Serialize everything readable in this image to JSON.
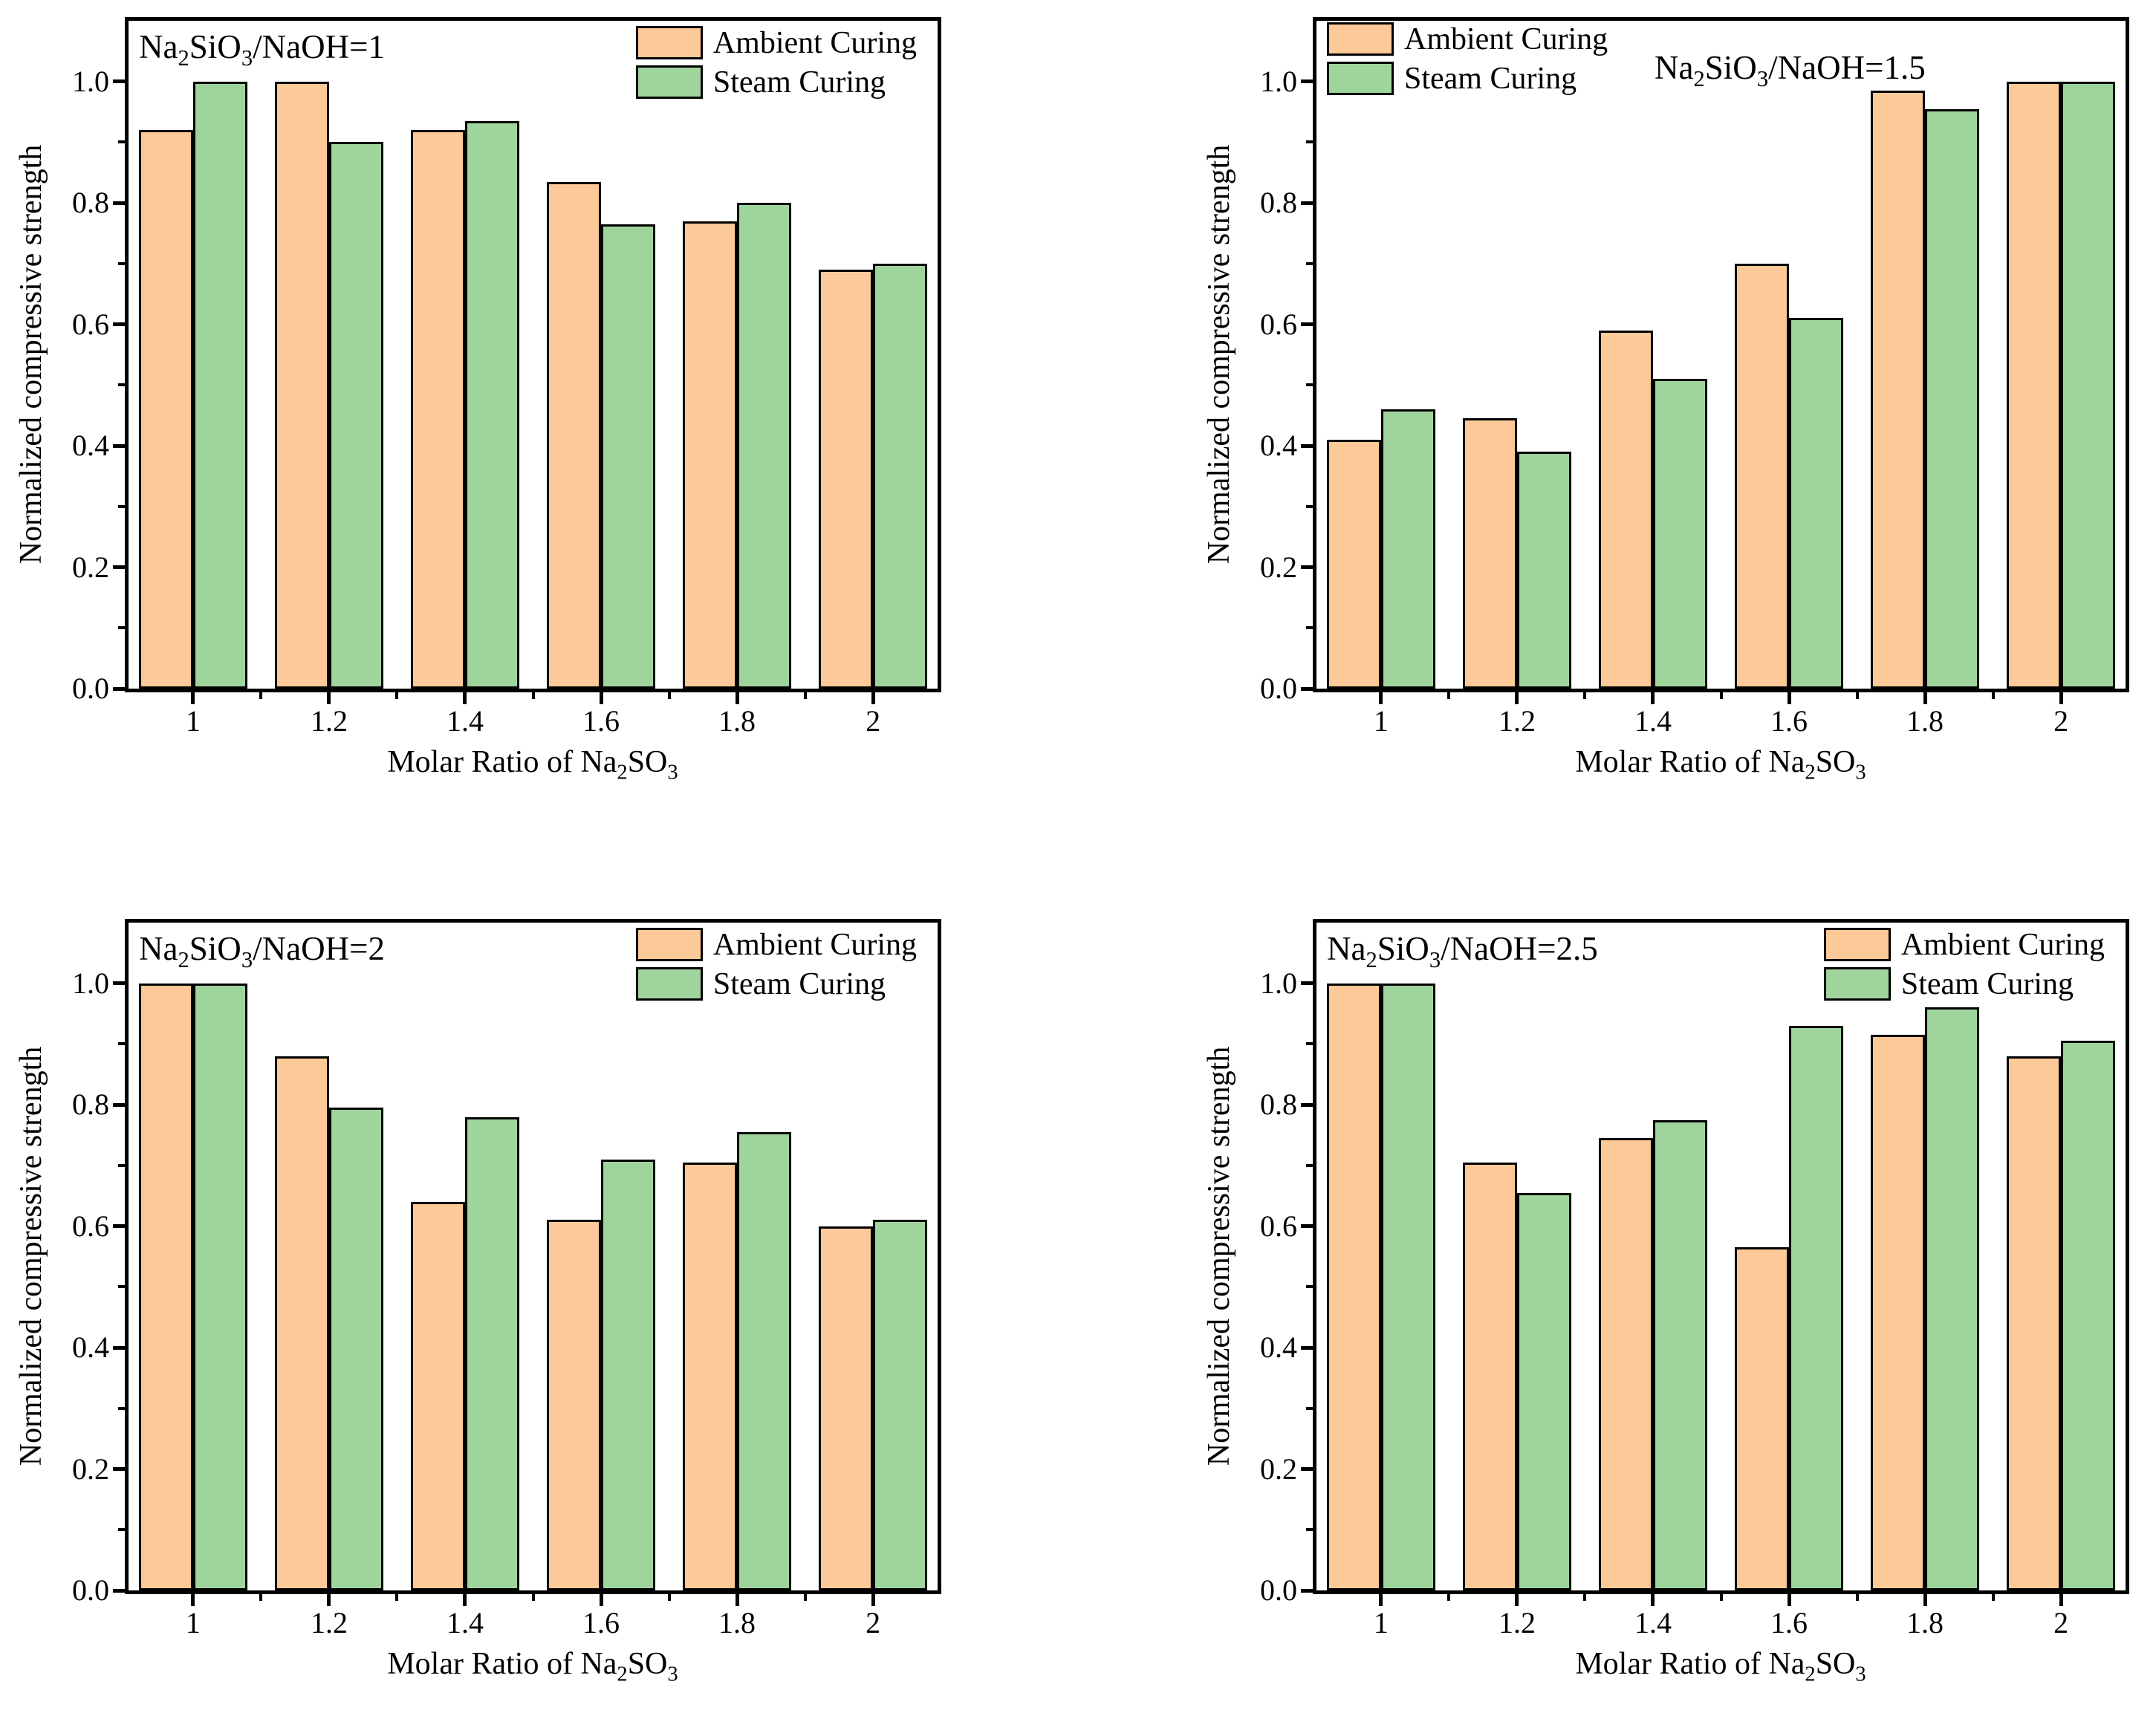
{
  "page": {
    "background": "#ffffff",
    "text_color": "#000000"
  },
  "series_style": {
    "ambient": {
      "name": "Ambient Curing",
      "color": "#FCC998",
      "edge_color": "#000000"
    },
    "steam": {
      "name": "Steam Curing",
      "color": "#9FD59C",
      "edge_color": "#000000"
    }
  },
  "chart_data": [
    {
      "type": "bar",
      "title": "Na_2SiO_3/NaOH=1",
      "title_position": "inside-top-left",
      "legend_position": "top-right",
      "legend_entries": [
        "Ambient Curing",
        "Steam Curing"
      ],
      "xlabel": "Molar Ratio of Na_2SO_3",
      "ylabel": "Normalized compressive strength",
      "categories": [
        "1",
        "1.2",
        "1.4",
        "1.6",
        "1.8",
        "2"
      ],
      "x": [
        1,
        1.2,
        1.4,
        1.6,
        1.8,
        2
      ],
      "series": [
        {
          "name": "Ambient Curing",
          "color": "#FCC998",
          "values": [
            0.92,
            1.0,
            0.92,
            0.835,
            0.77,
            0.69
          ]
        },
        {
          "name": "Steam Curing",
          "color": "#9FD59C",
          "values": [
            1.0,
            0.9,
            0.935,
            0.765,
            0.8,
            0.7
          ]
        }
      ],
      "xlim": [
        0.905,
        2.095
      ],
      "ylim": [
        0,
        1.1
      ],
      "yticks": [
        0.0,
        0.2,
        0.4,
        0.6,
        0.8,
        1.0
      ],
      "ytick_labels": [
        "0.0",
        "0.2",
        "0.4",
        "0.6",
        "0.8",
        "1.0"
      ],
      "yticks_minor": [
        0.1,
        0.3,
        0.5,
        0.7,
        0.9
      ],
      "xticks_minor": [
        1.1,
        1.3,
        1.5,
        1.7,
        1.9
      ],
      "bar_width": 0.08,
      "grid": false
    },
    {
      "type": "bar",
      "title": "Na_2SiO_3/NaOH=1.5",
      "title_position": "inside-top-center-right",
      "legend_position": "top-left",
      "legend_entries": [
        "Ambient Curing",
        "Steam Curing"
      ],
      "xlabel": "Molar Ratio of Na_2SO_3",
      "ylabel": "Normalized compressive strength",
      "categories": [
        "1",
        "1.2",
        "1.4",
        "1.6",
        "1.8",
        "2"
      ],
      "x": [
        1,
        1.2,
        1.4,
        1.6,
        1.8,
        2
      ],
      "series": [
        {
          "name": "Ambient Curing",
          "color": "#FCC998",
          "values": [
            0.41,
            0.445,
            0.59,
            0.7,
            0.985,
            1.0
          ]
        },
        {
          "name": "Steam Curing",
          "color": "#9FD59C",
          "values": [
            0.46,
            0.39,
            0.51,
            0.61,
            0.955,
            1.0
          ]
        }
      ],
      "xlim": [
        0.905,
        2.095
      ],
      "ylim": [
        0,
        1.1
      ],
      "yticks": [
        0.0,
        0.2,
        0.4,
        0.6,
        0.8,
        1.0
      ],
      "ytick_labels": [
        "0.0",
        "0.2",
        "0.4",
        "0.6",
        "0.8",
        "1.0"
      ],
      "yticks_minor": [
        0.1,
        0.3,
        0.5,
        0.7,
        0.9
      ],
      "xticks_minor": [
        1.1,
        1.3,
        1.5,
        1.7,
        1.9
      ],
      "bar_width": 0.08,
      "grid": false
    },
    {
      "type": "bar",
      "title": "Na_2SiO_3/NaOH=2",
      "title_position": "inside-top-left",
      "legend_position": "top-right",
      "legend_entries": [
        "Ambient Curing",
        "Steam Curing"
      ],
      "xlabel": "Molar Ratio of Na_2SO_3",
      "ylabel": "Normalized compressive strength",
      "categories": [
        "1",
        "1.2",
        "1.4",
        "1.6",
        "1.8",
        "2"
      ],
      "x": [
        1,
        1.2,
        1.4,
        1.6,
        1.8,
        2
      ],
      "series": [
        {
          "name": "Ambient Curing",
          "color": "#FCC998",
          "values": [
            1.0,
            0.88,
            0.64,
            0.61,
            0.705,
            0.6
          ]
        },
        {
          "name": "Steam Curing",
          "color": "#9FD59C",
          "values": [
            1.0,
            0.795,
            0.78,
            0.71,
            0.755,
            0.61
          ]
        }
      ],
      "xlim": [
        0.905,
        2.095
      ],
      "ylim": [
        0,
        1.1
      ],
      "yticks": [
        0.0,
        0.2,
        0.4,
        0.6,
        0.8,
        1.0
      ],
      "ytick_labels": [
        "0.0",
        "0.2",
        "0.4",
        "0.6",
        "0.8",
        "1.0"
      ],
      "yticks_minor": [
        0.1,
        0.3,
        0.5,
        0.7,
        0.9
      ],
      "xticks_minor": [
        1.1,
        1.3,
        1.5,
        1.7,
        1.9
      ],
      "bar_width": 0.08,
      "grid": false
    },
    {
      "type": "bar",
      "title": "Na_2SiO_3/NaOH=2.5",
      "title_position": "inside-top-left",
      "legend_position": "top-right",
      "legend_entries": [
        "Ambient Curing",
        "Steam Curing"
      ],
      "xlabel": "Molar Ratio of Na_2SO_3",
      "ylabel": "Normalized compressive strength",
      "categories": [
        "1",
        "1.2",
        "1.4",
        "1.6",
        "1.8",
        "2"
      ],
      "x": [
        1,
        1.2,
        1.4,
        1.6,
        1.8,
        2
      ],
      "series": [
        {
          "name": "Ambient Curing",
          "color": "#FCC998",
          "values": [
            1.0,
            0.705,
            0.745,
            0.565,
            0.915,
            0.88
          ]
        },
        {
          "name": "Steam Curing",
          "color": "#9FD59C",
          "values": [
            1.0,
            0.655,
            0.775,
            0.93,
            0.96,
            0.905
          ]
        }
      ],
      "xlim": [
        0.905,
        2.095
      ],
      "ylim": [
        0,
        1.1
      ],
      "yticks": [
        0.0,
        0.2,
        0.4,
        0.6,
        0.8,
        1.0
      ],
      "ytick_labels": [
        "0.0",
        "0.2",
        "0.4",
        "0.6",
        "0.8",
        "1.0"
      ],
      "yticks_minor": [
        0.1,
        0.3,
        0.5,
        0.7,
        0.9
      ],
      "xticks_minor": [
        1.1,
        1.3,
        1.5,
        1.7,
        1.9
      ],
      "bar_width": 0.08,
      "grid": false
    }
  ]
}
